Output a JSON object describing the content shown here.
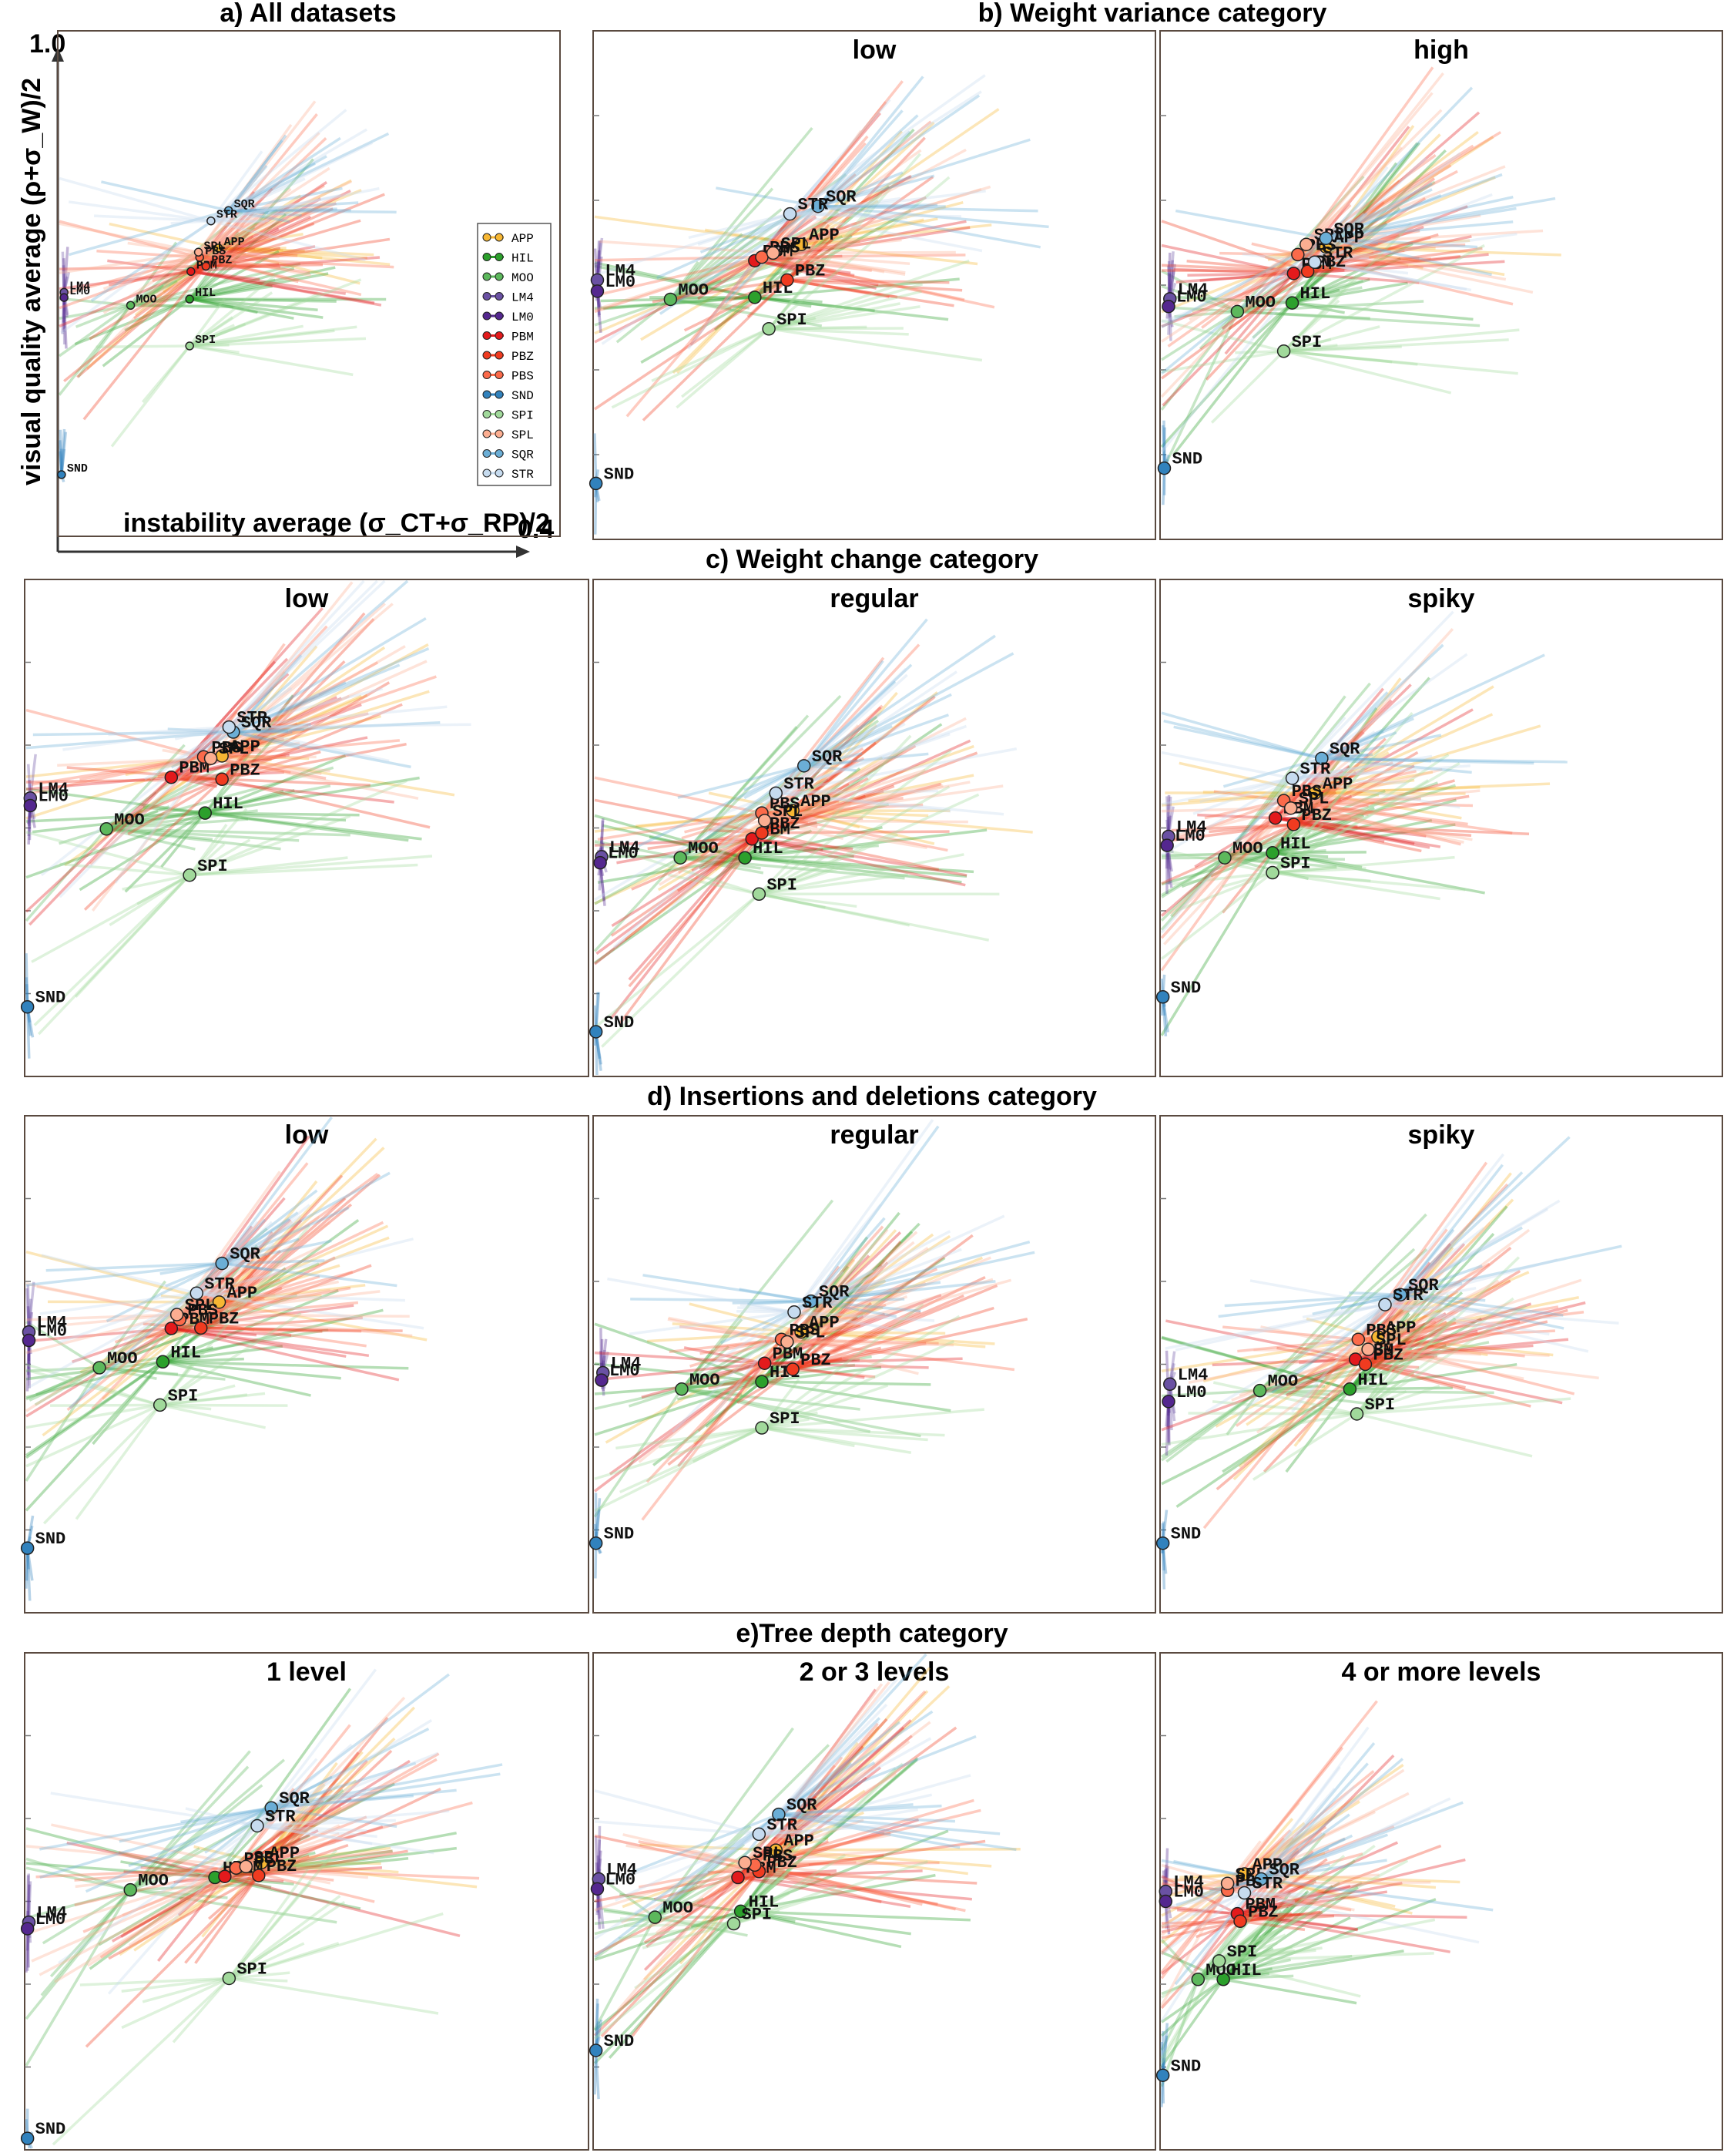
{
  "method_colors": {
    "APP": "#f7b733",
    "HIL": "#2ca02c",
    "MOO": "#5cb85c",
    "LM4": "#6a51a3",
    "LM0": "#54278f",
    "PBM": "#e31a1c",
    "PBZ": "#f03b20",
    "PBS": "#fb6a4a",
    "SND": "#3182bd",
    "SPI": "#a1d99b",
    "SPL": "#fcae91",
    "SQR": "#6baed6",
    "STR": "#c6dbef"
  },
  "legend": [
    "APP",
    "HIL",
    "MOO",
    "LM4",
    "LM0",
    "PBM",
    "PBZ",
    "PBS",
    "SND",
    "SPI",
    "SPL",
    "SQR",
    "STR"
  ],
  "axes_text": {
    "ylabel": "visual quality average (ρ+σ_W)/2",
    "xlabel": "instability average (σ_CT+σ_RP)/2",
    "y_max": "1.0",
    "x_max": "0.4"
  },
  "section_titles": {
    "a": "a) All datasets",
    "b": "b) Weight variance category",
    "c": "c) Weight change category",
    "d": "d) Insertions and deletions category",
    "e": "e)Tree depth category"
  },
  "chart_data": [
    {
      "type": "scatter",
      "title": "a) All datasets",
      "xlabel": "instability average (σ_CT+σ_RP)/2",
      "ylabel": "visual quality average (ρ+σ_W)/2",
      "xlim": [
        0,
        0.4
      ],
      "ylim": [
        0,
        1.0
      ],
      "legend_position": "right",
      "points": [
        {
          "label": "APP",
          "x": 0.128,
          "y": 0.583
        },
        {
          "label": "HIL",
          "x": 0.105,
          "y": 0.485
        },
        {
          "label": "MOO",
          "x": 0.058,
          "y": 0.473
        },
        {
          "label": "LM4",
          "x": 0.005,
          "y": 0.498
        },
        {
          "label": "LM0",
          "x": 0.005,
          "y": 0.488
        },
        {
          "label": "PBM",
          "x": 0.106,
          "y": 0.538
        },
        {
          "label": "PBZ",
          "x": 0.118,
          "y": 0.548
        },
        {
          "label": "PBS",
          "x": 0.113,
          "y": 0.565
        },
        {
          "label": "SND",
          "x": 0.003,
          "y": 0.148
        },
        {
          "label": "SPI",
          "x": 0.105,
          "y": 0.395
        },
        {
          "label": "SPL",
          "x": 0.112,
          "y": 0.575
        },
        {
          "label": "SQR",
          "x": 0.136,
          "y": 0.655
        },
        {
          "label": "STR",
          "x": 0.122,
          "y": 0.635
        }
      ]
    },
    {
      "type": "scatter",
      "title": "low",
      "group": "b) Weight variance category",
      "xlim": [
        0,
        0.4
      ],
      "ylim": [
        0,
        1.0
      ],
      "points": [
        {
          "label": "APP",
          "x": 0.148,
          "y": 0.58
        },
        {
          "label": "HIL",
          "x": 0.115,
          "y": 0.476
        },
        {
          "label": "MOO",
          "x": 0.055,
          "y": 0.472
        },
        {
          "label": "LM4",
          "x": 0.003,
          "y": 0.51
        },
        {
          "label": "LM0",
          "x": 0.003,
          "y": 0.488
        },
        {
          "label": "PBM",
          "x": 0.115,
          "y": 0.548
        },
        {
          "label": "PBZ",
          "x": 0.138,
          "y": 0.51
        },
        {
          "label": "PBS",
          "x": 0.12,
          "y": 0.555
        },
        {
          "label": "SND",
          "x": 0.002,
          "y": 0.11
        },
        {
          "label": "SPI",
          "x": 0.125,
          "y": 0.414
        },
        {
          "label": "SPL",
          "x": 0.128,
          "y": 0.563
        },
        {
          "label": "SQR",
          "x": 0.16,
          "y": 0.655
        },
        {
          "label": "STR",
          "x": 0.14,
          "y": 0.64
        }
      ]
    },
    {
      "type": "scatter",
      "title": "high",
      "group": "b) Weight variance category",
      "xlim": [
        0,
        0.4
      ],
      "ylim": [
        0,
        1.0
      ],
      "points": [
        {
          "label": "APP",
          "x": 0.118,
          "y": 0.575
        },
        {
          "label": "HIL",
          "x": 0.094,
          "y": 0.465
        },
        {
          "label": "MOO",
          "x": 0.055,
          "y": 0.448
        },
        {
          "label": "LM4",
          "x": 0.007,
          "y": 0.473
        },
        {
          "label": "LM0",
          "x": 0.006,
          "y": 0.458
        },
        {
          "label": "PBM",
          "x": 0.095,
          "y": 0.523
        },
        {
          "label": "PBZ",
          "x": 0.105,
          "y": 0.527
        },
        {
          "label": "PBS",
          "x": 0.098,
          "y": 0.56
        },
        {
          "label": "SND",
          "x": 0.003,
          "y": 0.14
        },
        {
          "label": "SPI",
          "x": 0.088,
          "y": 0.37
        },
        {
          "label": "SPL",
          "x": 0.104,
          "y": 0.58
        },
        {
          "label": "SQR",
          "x": 0.118,
          "y": 0.592
        },
        {
          "label": "STR",
          "x": 0.11,
          "y": 0.545
        }
      ]
    },
    {
      "type": "scatter",
      "title": "low",
      "group": "c) Weight change category",
      "xlim": [
        0,
        0.4
      ],
      "ylim": [
        0,
        1.0
      ],
      "points": [
        {
          "label": "APP",
          "x": 0.14,
          "y": 0.645
        },
        {
          "label": "HIL",
          "x": 0.128,
          "y": 0.53
        },
        {
          "label": "MOO",
          "x": 0.058,
          "y": 0.498
        },
        {
          "label": "LM4",
          "x": 0.004,
          "y": 0.56
        },
        {
          "label": "LM0",
          "x": 0.004,
          "y": 0.545
        },
        {
          "label": "PBM",
          "x": 0.104,
          "y": 0.602
        },
        {
          "label": "PBZ",
          "x": 0.14,
          "y": 0.598
        },
        {
          "label": "PBS",
          "x": 0.127,
          "y": 0.643
        },
        {
          "label": "SND",
          "x": 0.002,
          "y": 0.14
        },
        {
          "label": "SPI",
          "x": 0.117,
          "y": 0.405
        },
        {
          "label": "SPL",
          "x": 0.132,
          "y": 0.64
        },
        {
          "label": "SQR",
          "x": 0.148,
          "y": 0.693
        },
        {
          "label": "STR",
          "x": 0.145,
          "y": 0.703
        }
      ]
    },
    {
      "type": "scatter",
      "title": "regular",
      "group": "c) Weight change category",
      "xlim": [
        0,
        0.4
      ],
      "ylim": [
        0,
        1.0
      ],
      "points": [
        {
          "label": "APP",
          "x": 0.142,
          "y": 0.535
        },
        {
          "label": "HIL",
          "x": 0.108,
          "y": 0.44
        },
        {
          "label": "MOO",
          "x": 0.062,
          "y": 0.44
        },
        {
          "label": "LM4",
          "x": 0.006,
          "y": 0.442
        },
        {
          "label": "LM0",
          "x": 0.005,
          "y": 0.43
        },
        {
          "label": "PBM",
          "x": 0.113,
          "y": 0.478
        },
        {
          "label": "PBZ",
          "x": 0.12,
          "y": 0.49
        },
        {
          "label": "PBS",
          "x": 0.12,
          "y": 0.53
        },
        {
          "label": "SND",
          "x": 0.002,
          "y": 0.09
        },
        {
          "label": "SPI",
          "x": 0.118,
          "y": 0.367
        },
        {
          "label": "SPL",
          "x": 0.122,
          "y": 0.515
        },
        {
          "label": "SQR",
          "x": 0.15,
          "y": 0.625
        },
        {
          "label": "STR",
          "x": 0.13,
          "y": 0.57
        }
      ]
    },
    {
      "type": "scatter",
      "title": "spiky",
      "group": "c) Weight change category",
      "xlim": [
        0,
        0.4
      ],
      "ylim": [
        0,
        1.0
      ],
      "points": [
        {
          "label": "APP",
          "x": 0.11,
          "y": 0.57
        },
        {
          "label": "HIL",
          "x": 0.08,
          "y": 0.45
        },
        {
          "label": "MOO",
          "x": 0.046,
          "y": 0.44
        },
        {
          "label": "LM4",
          "x": 0.006,
          "y": 0.483
        },
        {
          "label": "LM0",
          "x": 0.005,
          "y": 0.465
        },
        {
          "label": "PBM",
          "x": 0.082,
          "y": 0.52
        },
        {
          "label": "PBZ",
          "x": 0.095,
          "y": 0.507
        },
        {
          "label": "PBS",
          "x": 0.088,
          "y": 0.555
        },
        {
          "label": "SND",
          "x": 0.002,
          "y": 0.16
        },
        {
          "label": "SPI",
          "x": 0.08,
          "y": 0.41
        },
        {
          "label": "SPL",
          "x": 0.093,
          "y": 0.54
        },
        {
          "label": "SQR",
          "x": 0.115,
          "y": 0.64
        },
        {
          "label": "STR",
          "x": 0.094,
          "y": 0.6
        }
      ]
    },
    {
      "type": "scatter",
      "title": "low",
      "group": "d) Insertions and deletions category",
      "xlim": [
        0,
        0.4
      ],
      "ylim": [
        0,
        1.0
      ],
      "points": [
        {
          "label": "APP",
          "x": 0.138,
          "y": 0.625
        },
        {
          "label": "HIL",
          "x": 0.098,
          "y": 0.505
        },
        {
          "label": "MOO",
          "x": 0.053,
          "y": 0.493
        },
        {
          "label": "LM4",
          "x": 0.003,
          "y": 0.565
        },
        {
          "label": "LM0",
          "x": 0.003,
          "y": 0.548
        },
        {
          "label": "PBM",
          "x": 0.104,
          "y": 0.572
        },
        {
          "label": "PBZ",
          "x": 0.125,
          "y": 0.573
        },
        {
          "label": "PBS",
          "x": 0.11,
          "y": 0.59
        },
        {
          "label": "SND",
          "x": 0.002,
          "y": 0.13
        },
        {
          "label": "SPI",
          "x": 0.096,
          "y": 0.418
        },
        {
          "label": "SPL",
          "x": 0.108,
          "y": 0.6
        },
        {
          "label": "SQR",
          "x": 0.14,
          "y": 0.703
        },
        {
          "label": "STR",
          "x": 0.122,
          "y": 0.643
        }
      ]
    },
    {
      "type": "scatter",
      "title": "regular",
      "group": "d) Insertions and deletions category",
      "xlim": [
        0,
        0.4
      ],
      "ylim": [
        0,
        1.0
      ],
      "points": [
        {
          "label": "APP",
          "x": 0.148,
          "y": 0.565
        },
        {
          "label": "HIL",
          "x": 0.12,
          "y": 0.465
        },
        {
          "label": "MOO",
          "x": 0.063,
          "y": 0.45
        },
        {
          "label": "LM4",
          "x": 0.007,
          "y": 0.483
        },
        {
          "label": "LM0",
          "x": 0.006,
          "y": 0.468
        },
        {
          "label": "PBM",
          "x": 0.122,
          "y": 0.502
        },
        {
          "label": "PBZ",
          "x": 0.142,
          "y": 0.49
        },
        {
          "label": "PBS",
          "x": 0.134,
          "y": 0.55
        },
        {
          "label": "SND",
          "x": 0.002,
          "y": 0.14
        },
        {
          "label": "SPI",
          "x": 0.12,
          "y": 0.372
        },
        {
          "label": "SPL",
          "x": 0.138,
          "y": 0.545
        },
        {
          "label": "SQR",
          "x": 0.155,
          "y": 0.627
        },
        {
          "label": "STR",
          "x": 0.143,
          "y": 0.605
        }
      ]
    },
    {
      "type": "scatter",
      "title": "spiky",
      "group": "d) Insertions and deletions category",
      "xlim": [
        0,
        0.4
      ],
      "ylim": [
        0,
        1.0
      ],
      "points": [
        {
          "label": "APP",
          "x": 0.155,
          "y": 0.555
        },
        {
          "label": "HIL",
          "x": 0.135,
          "y": 0.45
        },
        {
          "label": "MOO",
          "x": 0.071,
          "y": 0.447
        },
        {
          "label": "LM4",
          "x": 0.007,
          "y": 0.46
        },
        {
          "label": "LM0",
          "x": 0.006,
          "y": 0.425
        },
        {
          "label": "PBM",
          "x": 0.139,
          "y": 0.51
        },
        {
          "label": "PBZ",
          "x": 0.146,
          "y": 0.5
        },
        {
          "label": "PBS",
          "x": 0.141,
          "y": 0.55
        },
        {
          "label": "SND",
          "x": 0.002,
          "y": 0.14
        },
        {
          "label": "SPI",
          "x": 0.14,
          "y": 0.4
        },
        {
          "label": "SPL",
          "x": 0.148,
          "y": 0.53
        },
        {
          "label": "SQR",
          "x": 0.171,
          "y": 0.64
        },
        {
          "label": "STR",
          "x": 0.16,
          "y": 0.62
        }
      ]
    },
    {
      "type": "scatter",
      "title": "1 level",
      "group": "e)Tree depth category",
      "xlim": [
        0,
        0.4
      ],
      "ylim": [
        0,
        1.0
      ],
      "points": [
        {
          "label": "APP",
          "x": 0.168,
          "y": 0.578
        },
        {
          "label": "HIL",
          "x": 0.135,
          "y": 0.548
        },
        {
          "label": "MOO",
          "x": 0.075,
          "y": 0.523
        },
        {
          "label": "LM4",
          "x": 0.003,
          "y": 0.458
        },
        {
          "label": "LM0",
          "x": 0.002,
          "y": 0.445
        },
        {
          "label": "PBM",
          "x": 0.142,
          "y": 0.55
        },
        {
          "label": "PBZ",
          "x": 0.166,
          "y": 0.552
        },
        {
          "label": "PBS",
          "x": 0.15,
          "y": 0.567
        },
        {
          "label": "SND",
          "x": 0.002,
          "y": 0.023
        },
        {
          "label": "SPI",
          "x": 0.145,
          "y": 0.345
        },
        {
          "label": "SPL",
          "x": 0.157,
          "y": 0.57
        },
        {
          "label": "SQR",
          "x": 0.175,
          "y": 0.688
        },
        {
          "label": "STR",
          "x": 0.165,
          "y": 0.652
        }
      ]
    },
    {
      "type": "scatter",
      "title": "2 or 3 levels",
      "group": "e)Tree depth category",
      "xlim": [
        0,
        0.4
      ],
      "ylim": [
        0,
        1.0
      ],
      "points": [
        {
          "label": "APP",
          "x": 0.13,
          "y": 0.603
        },
        {
          "label": "HIL",
          "x": 0.105,
          "y": 0.48
        },
        {
          "label": "MOO",
          "x": 0.044,
          "y": 0.468
        },
        {
          "label": "LM4",
          "x": 0.004,
          "y": 0.545
        },
        {
          "label": "LM0",
          "x": 0.003,
          "y": 0.525
        },
        {
          "label": "PBM",
          "x": 0.103,
          "y": 0.548
        },
        {
          "label": "PBZ",
          "x": 0.118,
          "y": 0.56
        },
        {
          "label": "PBS",
          "x": 0.115,
          "y": 0.573
        },
        {
          "label": "SND",
          "x": 0.002,
          "y": 0.2
        },
        {
          "label": "SPI",
          "x": 0.1,
          "y": 0.455
        },
        {
          "label": "SPL",
          "x": 0.108,
          "y": 0.578
        },
        {
          "label": "SQR",
          "x": 0.132,
          "y": 0.675
        },
        {
          "label": "STR",
          "x": 0.118,
          "y": 0.635
        }
      ]
    },
    {
      "type": "scatter",
      "title": "4 or more levels",
      "group": "e)Tree depth category",
      "xlim": [
        0,
        0.4
      ],
      "ylim": [
        0,
        1.0
      ],
      "points": [
        {
          "label": "APP",
          "x": 0.06,
          "y": 0.555
        },
        {
          "label": "HIL",
          "x": 0.045,
          "y": 0.343
        },
        {
          "label": "MOO",
          "x": 0.027,
          "y": 0.343
        },
        {
          "label": "LM4",
          "x": 0.004,
          "y": 0.52
        },
        {
          "label": "LM0",
          "x": 0.004,
          "y": 0.5
        },
        {
          "label": "PBM",
          "x": 0.055,
          "y": 0.475
        },
        {
          "label": "PBZ",
          "x": 0.057,
          "y": 0.46
        },
        {
          "label": "PBS",
          "x": 0.048,
          "y": 0.522
        },
        {
          "label": "SND",
          "x": 0.002,
          "y": 0.15
        },
        {
          "label": "SPI",
          "x": 0.042,
          "y": 0.38
        },
        {
          "label": "SPL",
          "x": 0.048,
          "y": 0.536
        },
        {
          "label": "SQR",
          "x": 0.072,
          "y": 0.545
        },
        {
          "label": "STR",
          "x": 0.06,
          "y": 0.517
        }
      ]
    }
  ]
}
